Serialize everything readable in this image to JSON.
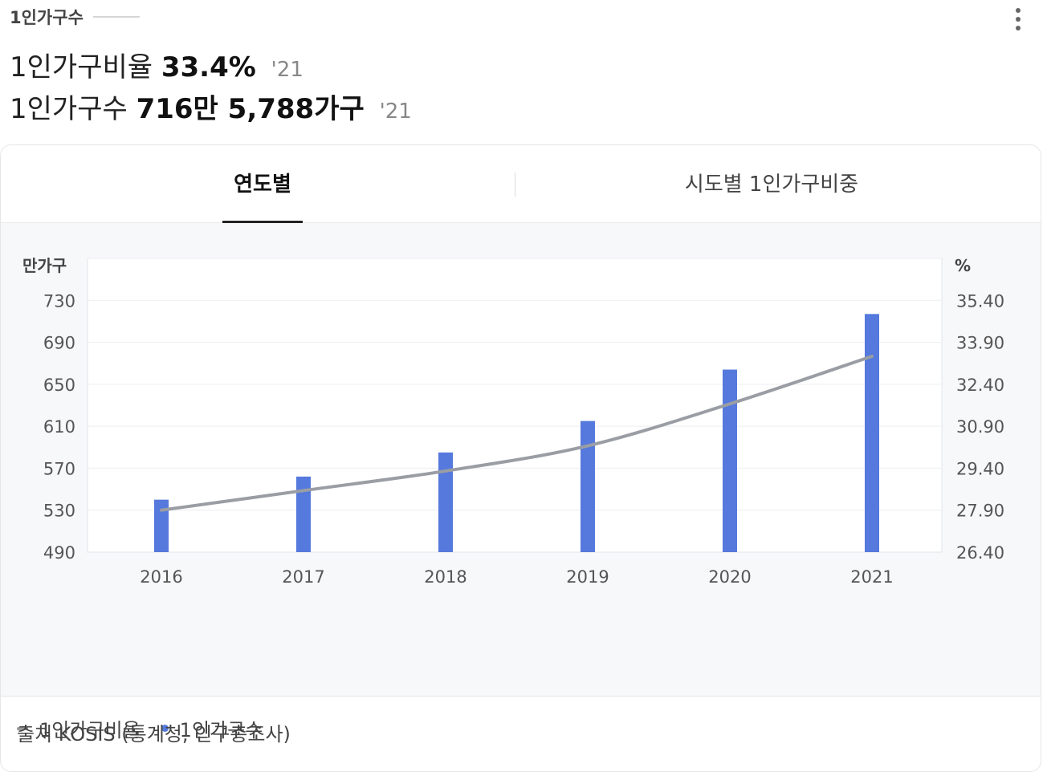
{
  "card": {
    "title": "1인가구수",
    "stats": [
      {
        "label": "1인가구비율",
        "value": "33.4%",
        "year": "'21"
      },
      {
        "label": "1인가구수",
        "value": "716만 5,788가구",
        "year": "'21"
      }
    ]
  },
  "tabs": [
    {
      "label": "연도별",
      "active": true
    },
    {
      "label": "시도별 1인가구비중",
      "active": false
    }
  ],
  "legend": [
    {
      "label": "1인가구비율",
      "marker": "line",
      "color": "#999999"
    },
    {
      "label": "1인가구수",
      "marker": "dot",
      "color": "#5579dc"
    }
  ],
  "source": "출처 KOSIS (통계청, 인구총조사)",
  "chart_data": {
    "type": "bar",
    "categories": [
      "2016",
      "2017",
      "2018",
      "2019",
      "2020",
      "2021"
    ],
    "series": [
      {
        "name": "1인가구수",
        "type": "bar",
        "axis": "left",
        "color": "#5579dc",
        "values": [
          540,
          562,
          585,
          615,
          664,
          717
        ]
      },
      {
        "name": "1인가구비율",
        "type": "line",
        "axis": "right",
        "color": "#9a9ea4",
        "values": [
          27.9,
          28.6,
          29.3,
          30.2,
          31.7,
          33.4
        ]
      }
    ],
    "y_left": {
      "label": "만가구",
      "ticks": [
        "730",
        "690",
        "650",
        "610",
        "570",
        "530",
        "490"
      ],
      "range": [
        490,
        770
      ]
    },
    "y_right": {
      "label": "%",
      "ticks": [
        "35.40",
        "33.90",
        "32.40",
        "30.90",
        "29.40",
        "27.90",
        "26.40"
      ],
      "range": [
        26.4,
        36.9
      ]
    },
    "grid": true,
    "legend_position": "bottom-left"
  }
}
